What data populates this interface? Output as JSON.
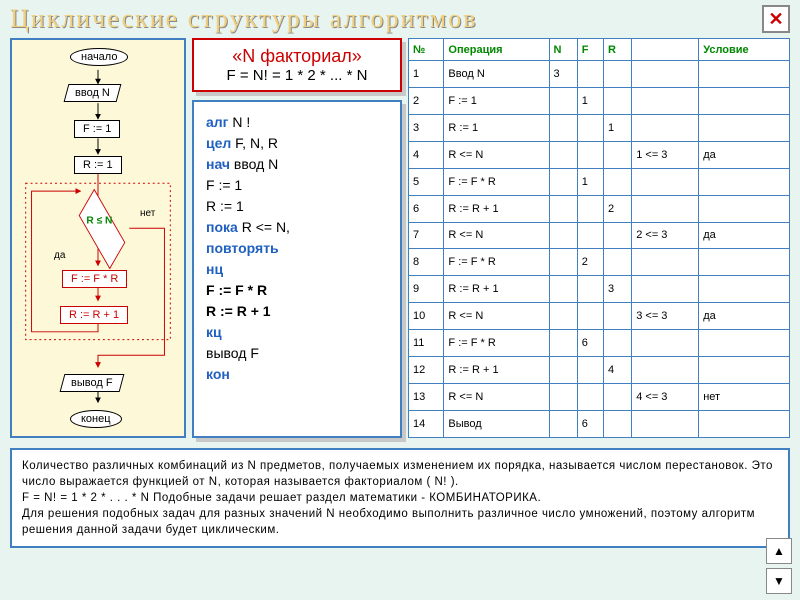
{
  "header": {
    "title": "Циклические структуры алгоритмов"
  },
  "flowchart": {
    "start": "начало",
    "input": "ввод N",
    "init_f": "F := 1",
    "init_r": "R := 1",
    "cond": "R ≤ N",
    "yes": "да",
    "no": "нет",
    "mul": "F := F * R",
    "inc": "R := R + 1",
    "output": "вывод F",
    "end": "конец"
  },
  "formula": {
    "title": "«N  факториал»",
    "eq": "F = N! = 1 * 2 * ... * N"
  },
  "algo": {
    "l1a": "алг",
    "l1b": "  N !",
    "l2a": "цел",
    "l2b": "  F, N, R",
    "l3a": "нач",
    "l3b": "  ввод  N",
    "l4": "        F := 1",
    "l5": "        R := 1",
    "l6a": "        пока",
    "l6b": "  R <= N,",
    "l7": "          повторять",
    "l8": "        нц",
    "l9": "           F := F * R",
    "l10": "           R := R + 1",
    "l11": "        кц",
    "l12": "        вывод  F",
    "l13": "кон"
  },
  "trace": {
    "headers": [
      "№",
      "Операция",
      "N",
      "F",
      "R",
      "",
      "Условие"
    ],
    "rows": [
      [
        "1",
        "Ввод N",
        "3",
        "",
        "",
        "",
        ""
      ],
      [
        "2",
        "F := 1",
        "",
        "1",
        "",
        "",
        ""
      ],
      [
        "3",
        "R := 1",
        "",
        "",
        "1",
        "",
        ""
      ],
      [
        "4",
        "R <= N",
        "",
        "",
        "",
        "1 <= 3",
        "да"
      ],
      [
        "5",
        "F := F * R",
        "",
        "1",
        "",
        "",
        ""
      ],
      [
        "6",
        "R := R + 1",
        "",
        "",
        "2",
        "",
        ""
      ],
      [
        "7",
        "R <= N",
        "",
        "",
        "",
        "2 <= 3",
        "да"
      ],
      [
        "8",
        "F := F * R",
        "",
        "2",
        "",
        "",
        ""
      ],
      [
        "9",
        "R := R + 1",
        "",
        "",
        "3",
        "",
        ""
      ],
      [
        "10",
        "R <= N",
        "",
        "",
        "",
        "3 <= 3",
        "да"
      ],
      [
        "11",
        "F := F * R",
        "",
        "6",
        "",
        "",
        ""
      ],
      [
        "12",
        "R := R + 1",
        "",
        "",
        "4",
        "",
        ""
      ],
      [
        "13",
        "R <= N",
        "",
        "",
        "",
        "4 <= 3",
        "нет"
      ],
      [
        "14",
        "Вывод",
        "",
        "6",
        "",
        "",
        ""
      ]
    ]
  },
  "footer": {
    "p1": "Количество различных комбинаций из N предметов, получаемых изменением их порядка, называется числом перестановок. Это число выражается функцией от N, которая называется факториалом ( N! ).",
    "p2": "F = N! = 1 * 2 * . . . * N     Подобные задачи решает раздел математики - КОМБИНАТОРИКА.",
    "p3": "    Для решения подобных задач для разных значений N необходимо выполнить различное число умножений, поэтому алгоритм решения данной задачи будет циклическим."
  }
}
